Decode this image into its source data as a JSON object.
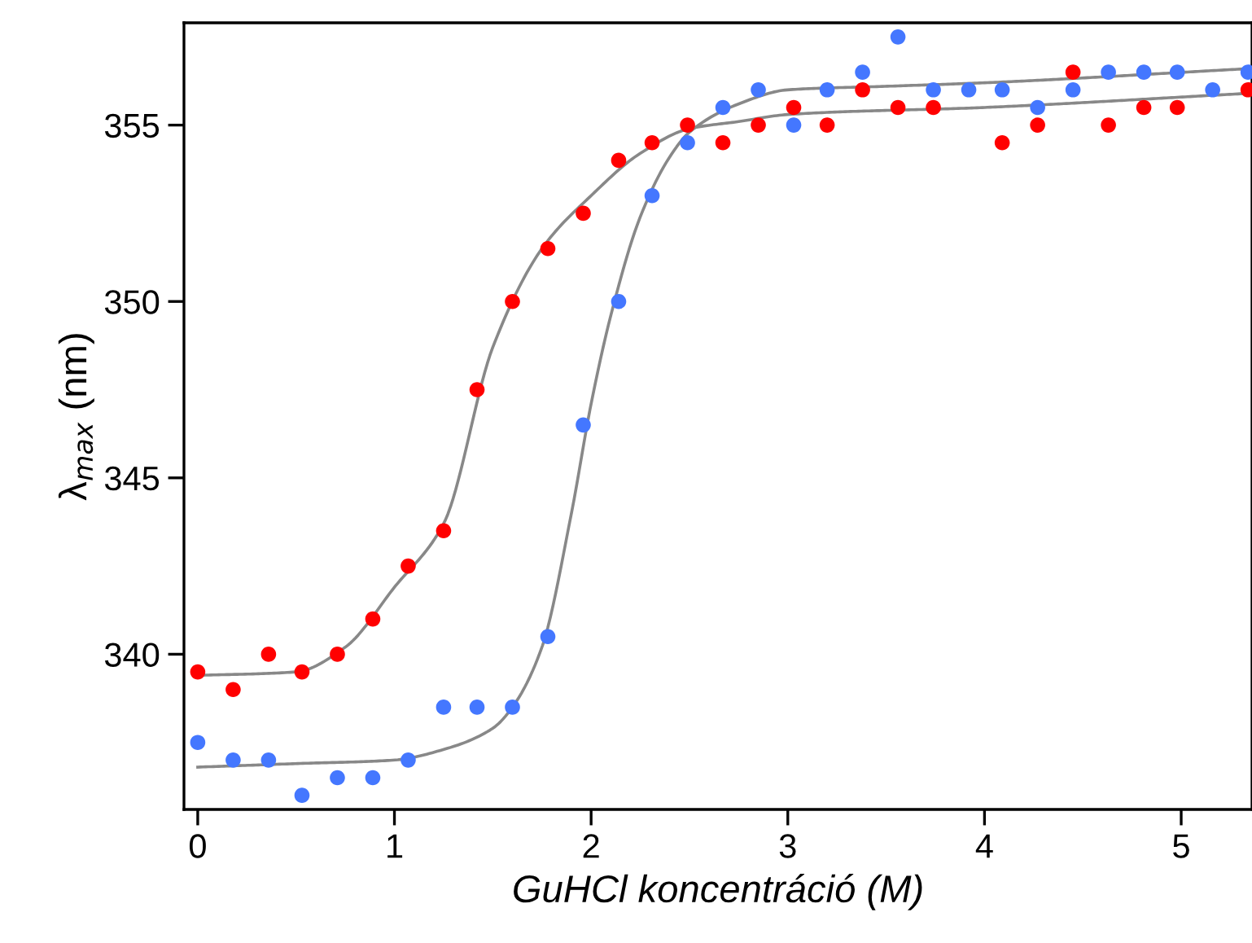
{
  "chart_data": {
    "type": "scatter",
    "xlabel": "GuHCl koncentráció (M)",
    "ylabel": "λ$_{max}$ (nm)",
    "x": [
      0,
      0.18,
      0.36,
      0.53,
      0.71,
      0.89,
      1.07,
      1.25,
      1.42,
      1.6,
      1.78,
      1.96,
      2.14,
      2.31,
      2.49,
      2.67,
      2.85,
      3.03,
      3.2,
      3.38,
      3.56,
      3.74,
      3.92,
      4.09,
      4.27,
      4.45,
      4.63,
      4.81,
      4.98,
      5.16,
      5.34
    ],
    "series": [
      {
        "color": "#ff0000",
        "values": [
          339.5,
          339,
          340,
          339.5,
          340,
          341,
          342.5,
          343.5,
          347.5,
          350,
          351.5,
          352.5,
          354,
          354.5,
          355,
          354.5,
          355,
          355.5,
          355,
          356,
          355.5,
          355.5,
          null,
          354.5,
          355,
          356.5,
          355,
          355.5,
          355.5,
          null,
          356
        ]
      },
      {
        "color": "#4477ff",
        "values": [
          337.5,
          337,
          337,
          336,
          336.5,
          336.5,
          337,
          338.5,
          338.5,
          338.5,
          340.5,
          346.5,
          350,
          353,
          354.5,
          355.5,
          356,
          355,
          356,
          356.5,
          357.5,
          356,
          356,
          356,
          355.5,
          356,
          356.5,
          356.5,
          356.5,
          356,
          356.5
        ]
      },
      {
        "type": "line",
        "marker": "none",
        "color": "#888888",
        "x": [
          0,
          0.5,
          0.75,
          1.0,
          1.25,
          1.5,
          1.75,
          2.0,
          2.25,
          2.5,
          2.75,
          3.0,
          4.0,
          5.34
        ],
        "values": [
          339.4,
          339.5,
          340.2,
          341.9,
          343.7,
          348.7,
          351.5,
          353,
          354.2,
          354.9,
          355.1,
          355.3,
          355.5,
          355.9
        ]
      },
      {
        "type": "line",
        "marker": "none",
        "color": "#888888",
        "x": [
          0,
          0.5,
          1.0,
          1.25,
          1.5,
          1.6,
          1.75,
          1.9,
          2.0,
          2.1,
          2.25,
          2.4,
          2.5,
          2.75,
          3.0,
          3.5,
          4.0,
          5.34
        ],
        "values": [
          336.8,
          336.9,
          337,
          337.3,
          337.9,
          338.5,
          340.2,
          344,
          347.1,
          349.6,
          352.4,
          354.1,
          354.8,
          355.6,
          356,
          356.1,
          356.2,
          356.6
        ]
      }
    ],
    "xlim": [
      -0.07,
      5.36
    ],
    "ylim": [
      335.6,
      357.9
    ],
    "xticks": [
      0,
      1,
      2,
      3,
      4,
      5
    ],
    "yticks": [
      340,
      345,
      350,
      355
    ],
    "marker": "circle",
    "grid": false,
    "legend": false
  }
}
